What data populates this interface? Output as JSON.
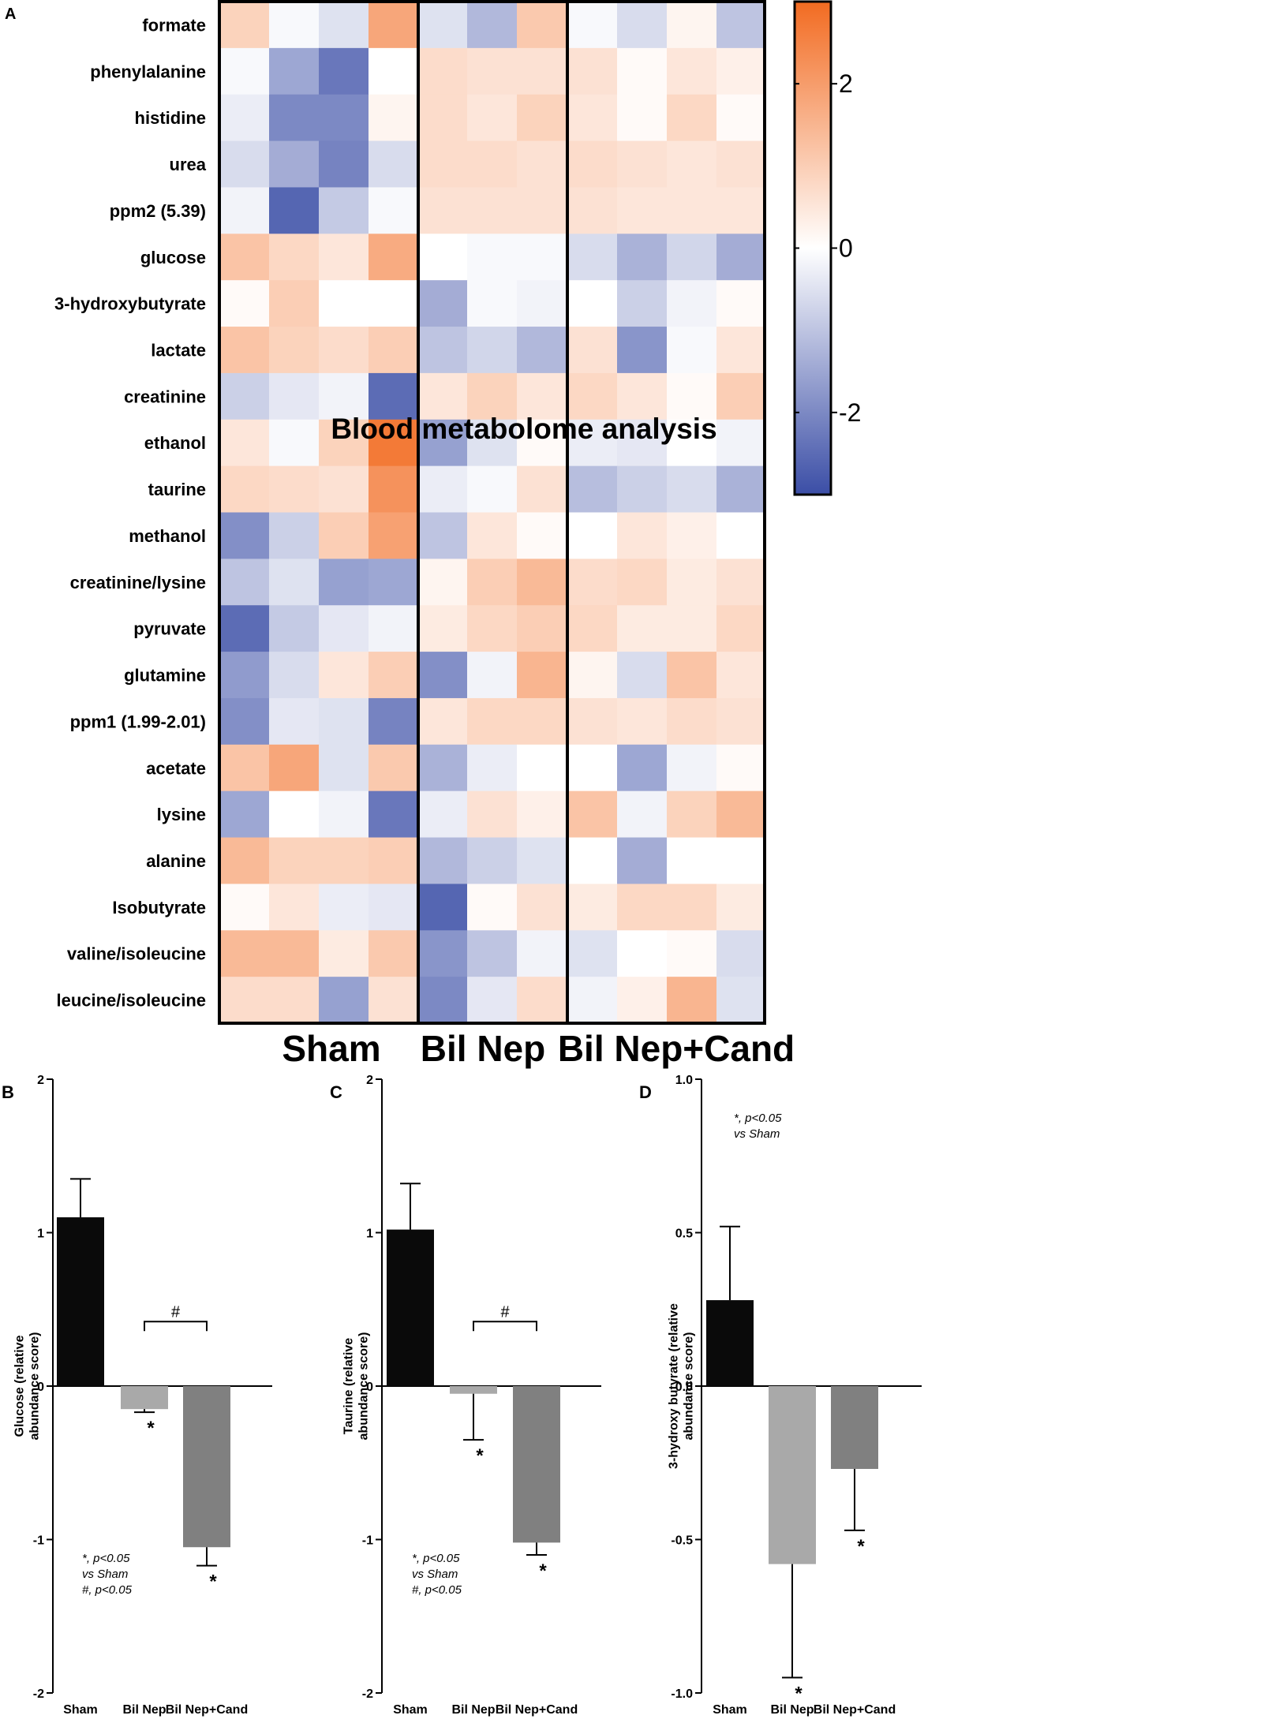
{
  "figure": {
    "overlay_title": "Blood metabolome analysis",
    "panel_labels": [
      "A",
      "B",
      "C",
      "D"
    ],
    "colors": {
      "low": "#3b4ea6",
      "mid": "#ffffff",
      "high": "#f26b21",
      "bar_sham": "#0a0a0a",
      "bar_bil": "#a9a9a9",
      "bar_cand": "#808080"
    }
  },
  "chart_data": [
    {
      "type": "heatmap",
      "title": "Blood metabolome analysis",
      "rows": [
        "formate",
        "phenylalanine",
        "histidine",
        "urea",
        "ppm2 (5.39)",
        "glucose",
        "3-hydroxybutyrate",
        "lactate",
        "creatinine",
        "ethanol",
        "taurine",
        "methanol",
        "creatinine/lysine",
        "pyruvate",
        "glutamine",
        "ppm1 (1.99-2.01)",
        "acetate",
        "lysine",
        "alanine",
        "Isobutyrate",
        "valine/isoleucine",
        "leucine/isoleucine"
      ],
      "groups": [
        {
          "name": "Sham",
          "n": 4
        },
        {
          "name": "Bil Nep",
          "n": 3
        },
        {
          "name": "Bil Nep+Cand",
          "n": 4
        }
      ],
      "values": [
        [
          0.9,
          -0.1,
          -0.5,
          1.8,
          -0.5,
          -1.2,
          1.1,
          -0.1,
          -0.6,
          0.2,
          -1.0
        ],
        [
          -0.1,
          -1.5,
          -2.3,
          0.0,
          0.7,
          0.6,
          0.6,
          0.6,
          0.1,
          0.5,
          0.3
        ],
        [
          -0.3,
          -2.0,
          -2.0,
          0.2,
          0.7,
          0.5,
          0.9,
          0.5,
          0.1,
          0.8,
          0.1
        ],
        [
          -0.6,
          -1.4,
          -2.1,
          -0.6,
          0.7,
          0.7,
          0.6,
          0.7,
          0.6,
          0.5,
          0.6
        ],
        [
          -0.2,
          -2.6,
          -0.9,
          -0.1,
          0.6,
          0.6,
          0.6,
          0.6,
          0.5,
          0.5,
          0.5
        ],
        [
          1.2,
          0.8,
          0.5,
          1.7,
          0.0,
          -0.1,
          -0.1,
          -0.6,
          -1.3,
          -0.7,
          -1.4
        ],
        [
          0.1,
          1.0,
          0.0,
          0.0,
          -1.4,
          -0.1,
          -0.2,
          0.0,
          -0.8,
          -0.2,
          0.1
        ],
        [
          1.2,
          0.9,
          0.7,
          1.0,
          -1.0,
          -0.7,
          -1.2,
          0.6,
          -1.8,
          -0.1,
          0.5
        ],
        [
          -0.8,
          -0.4,
          -0.2,
          -2.5,
          0.5,
          0.9,
          0.5,
          0.8,
          0.5,
          0.1,
          1.0
        ],
        [
          0.5,
          -0.1,
          0.9,
          2.7,
          -1.6,
          -0.5,
          0.1,
          -0.3,
          -0.4,
          0.0,
          -0.2
        ],
        [
          0.8,
          0.7,
          0.6,
          2.2,
          -0.3,
          -0.1,
          0.6,
          -1.1,
          -0.8,
          -0.6,
          -1.3
        ],
        [
          -1.9,
          -0.8,
          1.0,
          1.9,
          -1.0,
          0.5,
          0.1,
          0.0,
          0.5,
          0.3,
          0.0
        ],
        [
          -1.0,
          -0.5,
          -1.6,
          -1.5,
          0.2,
          1.0,
          1.4,
          0.7,
          0.8,
          0.4,
          0.6
        ],
        [
          -2.5,
          -0.9,
          -0.4,
          -0.2,
          0.4,
          0.8,
          1.0,
          0.8,
          0.4,
          0.4,
          0.8
        ],
        [
          -1.7,
          -0.6,
          0.5,
          1.0,
          -1.9,
          -0.2,
          1.5,
          0.2,
          -0.6,
          1.2,
          0.5
        ],
        [
          -1.9,
          -0.4,
          -0.5,
          -2.1,
          0.5,
          0.8,
          0.8,
          0.6,
          0.5,
          0.7,
          0.6
        ],
        [
          1.2,
          1.8,
          -0.5,
          1.1,
          -1.3,
          -0.3,
          0.0,
          0.0,
          -1.5,
          -0.2,
          0.1
        ],
        [
          -1.5,
          0.0,
          -0.2,
          -2.3,
          -0.3,
          0.6,
          0.3,
          1.2,
          -0.2,
          0.9,
          1.4
        ],
        [
          1.4,
          0.9,
          0.9,
          1.0,
          -1.2,
          -0.8,
          -0.5,
          0.0,
          -1.4,
          0.0,
          0.0
        ],
        [
          0.1,
          0.5,
          -0.3,
          -0.4,
          -2.6,
          0.1,
          0.6,
          0.4,
          0.8,
          0.8,
          0.4
        ],
        [
          1.4,
          1.4,
          0.4,
          1.1,
          -1.8,
          -1.0,
          -0.2,
          -0.5,
          0.0,
          0.1,
          -0.6
        ],
        [
          0.7,
          0.7,
          -1.6,
          0.6,
          -2.0,
          -0.4,
          0.7,
          -0.2,
          0.3,
          1.5,
          -0.5
        ]
      ],
      "colorbar": {
        "min": -3,
        "max": 3,
        "ticks": [
          2,
          0,
          -2
        ],
        "tick_labels": [
          "2",
          "0",
          "-2"
        ]
      }
    },
    {
      "type": "bar",
      "panel": "B",
      "ylabel": "Glucose (relative abundance score)",
      "categories": [
        "Sham",
        "Bil Nep",
        "Bil Nep+Cand"
      ],
      "values": [
        1.1,
        -0.15,
        -1.05
      ],
      "errors": [
        0.25,
        0.02,
        0.12
      ],
      "ylim": [
        -2,
        2
      ],
      "yticks": [
        2,
        1,
        0,
        -1,
        -2
      ],
      "ytick_labels": [
        "2",
        "1",
        "0",
        "-1",
        "-2"
      ],
      "bar_marks": [
        "",
        "*",
        "*"
      ],
      "bracket_mark": "#",
      "annotation_lines": [
        "*, p<0.05",
        "vs Sham",
        "#, p<0.05"
      ]
    },
    {
      "type": "bar",
      "panel": "C",
      "ylabel": "Taurine (relative abundance score)",
      "categories": [
        "Sham",
        "Bil Nep",
        "Bil Nep+Cand"
      ],
      "values": [
        1.02,
        -0.05,
        -1.02
      ],
      "errors": [
        0.3,
        0.3,
        0.08
      ],
      "ylim": [
        -2,
        2
      ],
      "yticks": [
        2,
        1,
        0,
        -1,
        -2
      ],
      "ytick_labels": [
        "2",
        "1",
        "0",
        "-1",
        "-2"
      ],
      "bar_marks": [
        "",
        "*",
        "*"
      ],
      "bracket_mark": "#",
      "annotation_lines": [
        "*, p<0.05",
        "vs Sham",
        "#, p<0.05"
      ]
    },
    {
      "type": "bar",
      "panel": "D",
      "ylabel": "3-hydroxy butyrate (relative abundance score)",
      "categories": [
        "Sham",
        "Bil Nep",
        "Bil Nep+Cand"
      ],
      "values": [
        0.28,
        -0.58,
        -0.27
      ],
      "errors": [
        0.24,
        0.37,
        0.2
      ],
      "ylim": [
        -1.0,
        1.0
      ],
      "yticks": [
        1.0,
        0.5,
        0.0,
        -0.5,
        -1.0
      ],
      "ytick_labels": [
        "1.0",
        "0.5",
        "0.0",
        "-0.5",
        "-1.0"
      ],
      "bar_marks": [
        "",
        "*",
        "*"
      ],
      "bracket_mark": "",
      "annotation_lines": [
        "*, p<0.05",
        "vs Sham"
      ]
    }
  ]
}
